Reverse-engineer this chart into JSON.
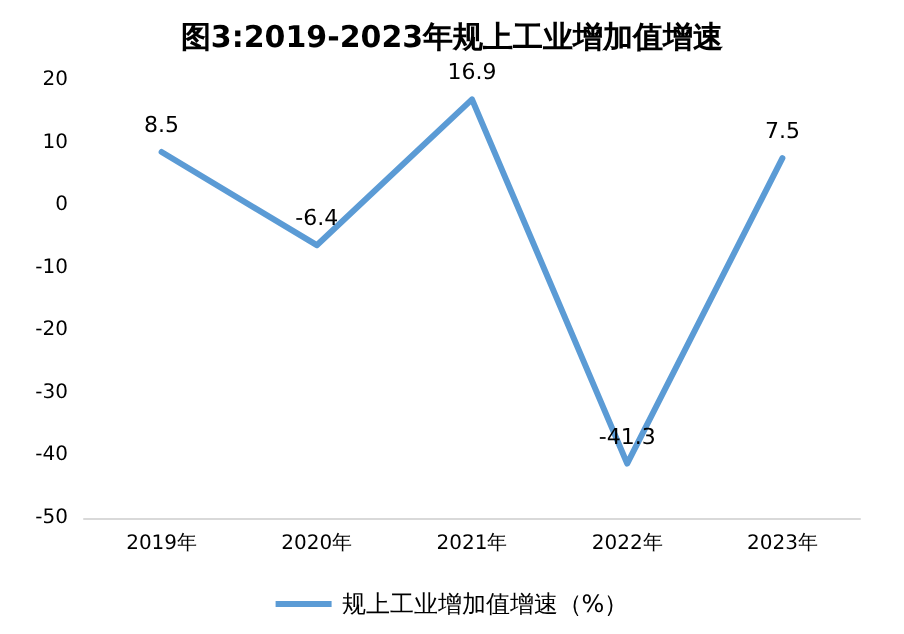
{
  "chart_data": {
    "type": "line",
    "title": "图3:2019-2023年规上工业增加值增速",
    "categories": [
      "2019年",
      "2020年",
      "2021年",
      "2022年",
      "2023年"
    ],
    "series": [
      {
        "name": "规上工业增加值增速（%）",
        "color": "#5b9bd5",
        "values": [
          8.5,
          -6.4,
          16.9,
          -41.3,
          7.5
        ]
      }
    ],
    "ylim": [
      -50,
      20
    ],
    "yticks": [
      -50,
      -40,
      -30,
      -20,
      -10,
      0,
      10,
      20
    ],
    "grid": false,
    "legend": "bottom",
    "data_labels": true,
    "marker": "none",
    "line_style": "solid"
  }
}
